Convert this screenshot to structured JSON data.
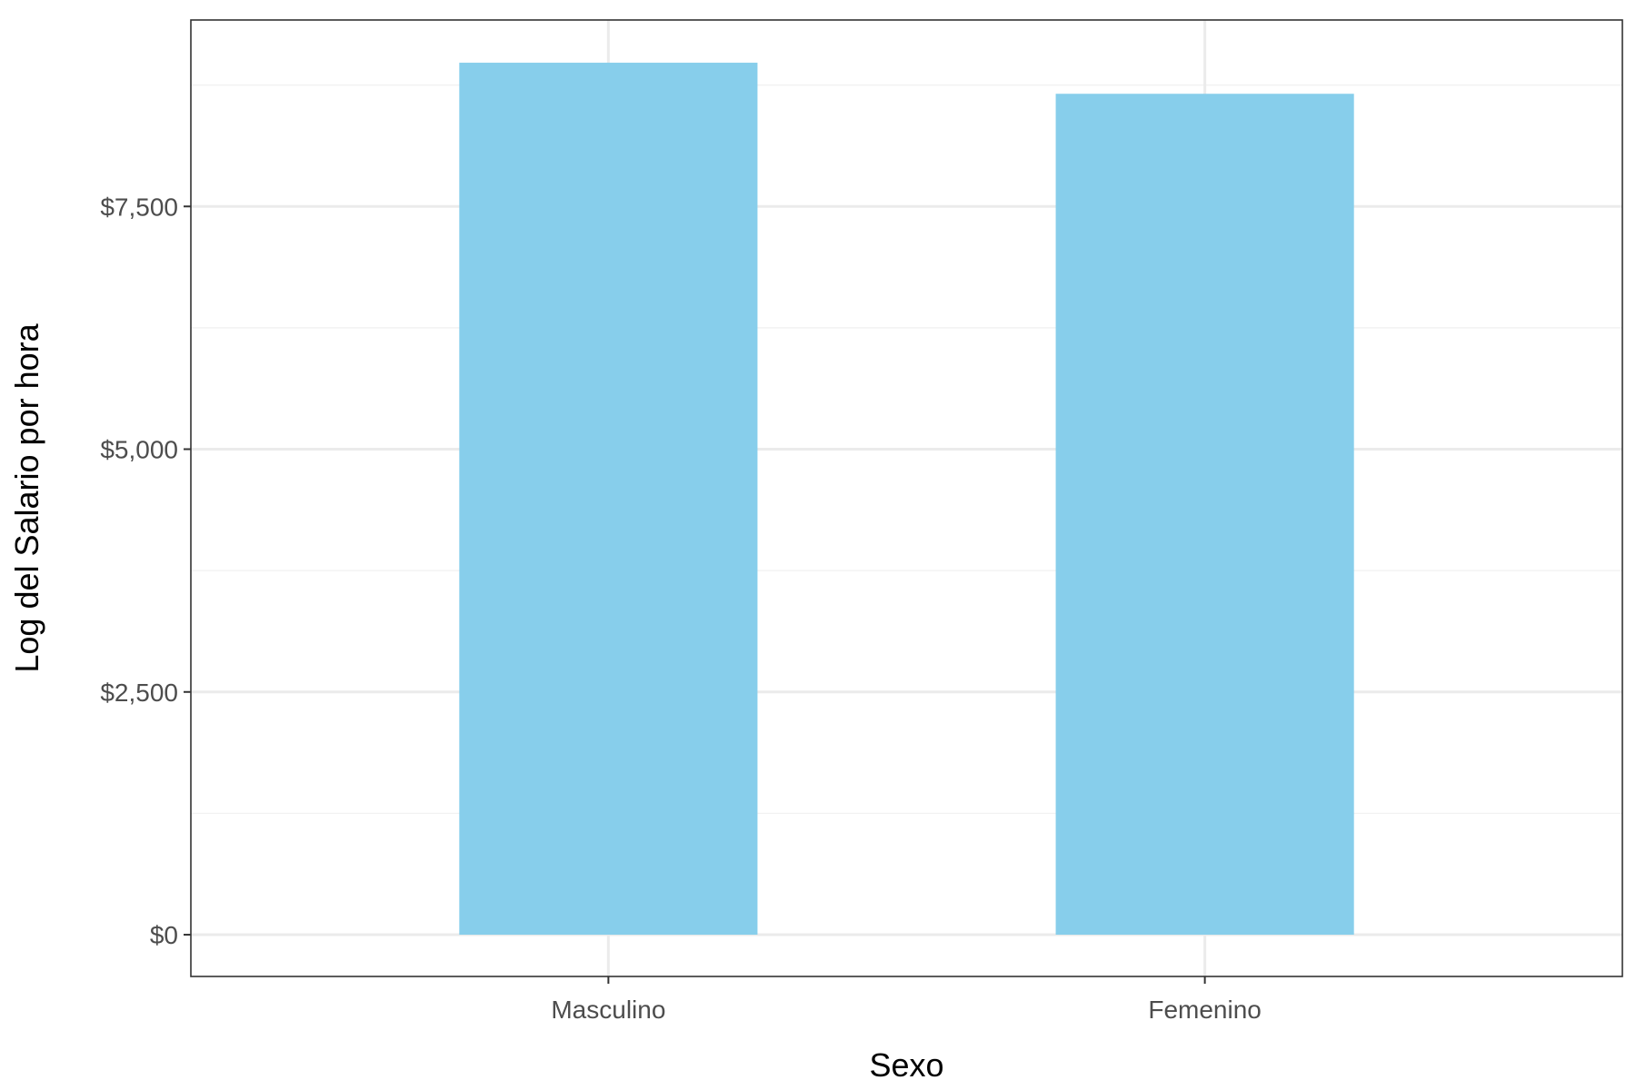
{
  "chart_data": {
    "type": "bar",
    "categories": [
      "Masculino",
      "Femenino"
    ],
    "values": [
      8980,
      8660
    ],
    "xlabel": "Sexo",
    "ylabel": "Log del Salario por hora",
    "ylim": [
      -430,
      9420
    ],
    "yticks": [
      0,
      2500,
      5000,
      7500
    ],
    "ytick_labels": [
      "$0",
      "$2,500",
      "$5,000",
      "$7,500"
    ],
    "grid": true,
    "legend": "none",
    "colors": {
      "bar": "#87CEEB",
      "grid_major": "#EBEBEB",
      "grid_minor": "#F2F2F2",
      "panel_border": "#333333",
      "tick_text": "#4D4D4D",
      "title_text": "#000000"
    }
  }
}
